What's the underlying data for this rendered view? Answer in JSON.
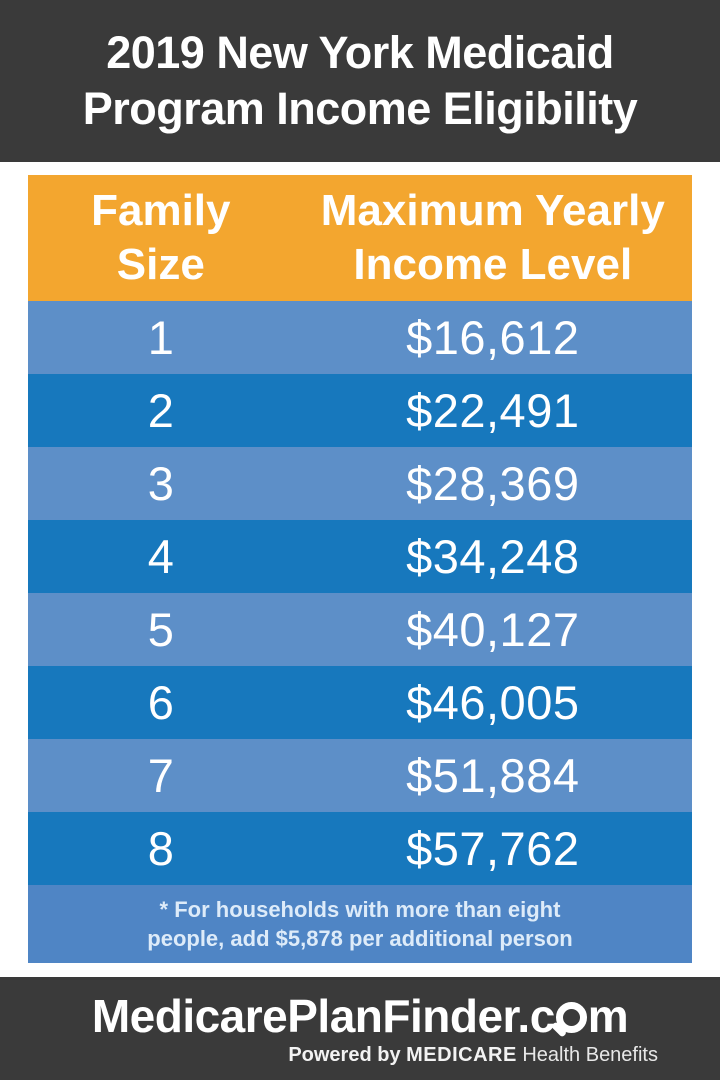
{
  "title": {
    "line1": "2019 New York Medicaid",
    "line2": "Program Income Eligibility"
  },
  "table": {
    "headers": {
      "col1": "Family Size",
      "col2": "Maximum Yearly Income Level"
    },
    "rows": [
      {
        "size": "1",
        "income": "$16,612"
      },
      {
        "size": "2",
        "income": "$22,491"
      },
      {
        "size": "3",
        "income": "$28,369"
      },
      {
        "size": "4",
        "income": "$34,248"
      },
      {
        "size": "5",
        "income": "$40,127"
      },
      {
        "size": "6",
        "income": "$46,005"
      },
      {
        "size": "7",
        "income": "$51,884"
      },
      {
        "size": "8",
        "income": "$57,762"
      }
    ],
    "footnote": {
      "line1": "* For households with more than eight",
      "line2": "people, add $5,878 per additional person"
    }
  },
  "footer": {
    "logo_prefix": "MedicarePlanFinder.c",
    "logo_suffix": "m",
    "tagline_powered": "Powered by ",
    "tagline_brand": "MEDICARE",
    "tagline_rest": " Health Benefits"
  },
  "colors": {
    "band_dark": "#3a3a3a",
    "header_orange": "#f3a62f",
    "row_light_blue": "#5d8fc8",
    "row_dark_blue": "#1778bd",
    "footnote_blue": "#4f85c5",
    "text_white": "#ffffff"
  },
  "chart_data": {
    "type": "table",
    "title": "2019 New York Medicaid Program Income Eligibility",
    "columns": [
      "Family Size",
      "Maximum Yearly Income Level"
    ],
    "categories": [
      1,
      2,
      3,
      4,
      5,
      6,
      7,
      8
    ],
    "values": [
      16612,
      22491,
      28369,
      34248,
      40127,
      46005,
      51884,
      57762
    ],
    "note": "* For households with more than eight people, add $5,878 per additional person",
    "additional_person_increment": 5878,
    "footer_brand": "MedicarePlanFinder.com, Powered by MEDICARE Health Benefits"
  }
}
